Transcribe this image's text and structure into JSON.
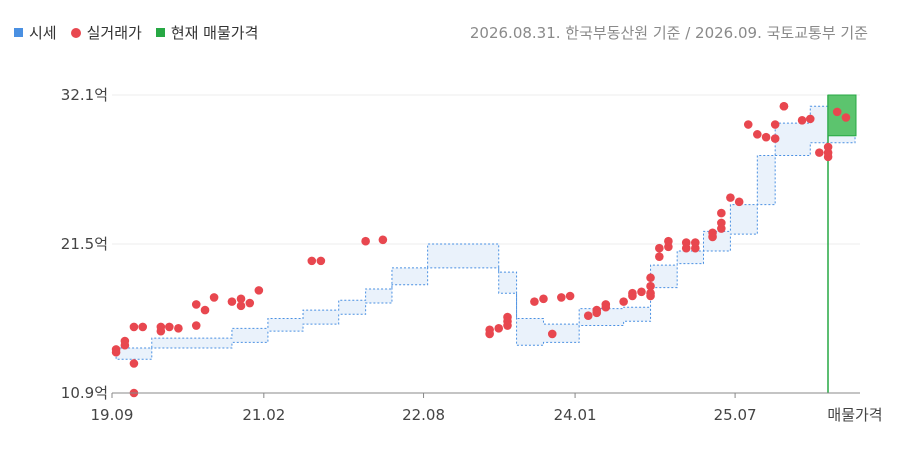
{
  "legend": {
    "market_label": "시세",
    "actual_label": "실거래가",
    "listing_label": "현재 매물가격"
  },
  "source_note": "2026.08.31. 한국부동산원 기준 / 2026.09. 국토교통부 기준",
  "colors": {
    "market": "#4a90e2",
    "market_fill": "#eaf2fb",
    "actual": "#e8474f",
    "listing": "#27a844",
    "listing_fill": "#5cc46e",
    "grid": "#ececec"
  },
  "chart_data": {
    "type": "scatter",
    "y_unit": "억",
    "ylim": [
      10.9,
      32.1
    ],
    "y_ticks": [
      10.9,
      21.5,
      32.1
    ],
    "y_tick_labels": [
      "10.9억",
      "21.5억",
      "32.1억"
    ],
    "x_start": "2019-09-01",
    "x_end": "2026-09-01",
    "x_tick_dates": [
      "2019-09-01",
      "2021-02-01",
      "2022-08-01",
      "2024-01-01",
      "2025-07-01"
    ],
    "x_tick_labels": [
      "19.09",
      "21.02",
      "22.08",
      "24.01",
      "25.07"
    ],
    "listing_label": "매물가격",
    "listing_range": [
      29.2,
      32.1
    ],
    "market_band": [
      {
        "date": "2019-09",
        "low": 13.3,
        "high": 14.1
      },
      {
        "date": "2020-01",
        "low": 14.1,
        "high": 14.8
      },
      {
        "date": "2020-10",
        "low": 14.5,
        "high": 15.5
      },
      {
        "date": "2021-02",
        "low": 15.3,
        "high": 16.2
      },
      {
        "date": "2021-06",
        "low": 15.8,
        "high": 16.8
      },
      {
        "date": "2021-10",
        "low": 16.5,
        "high": 17.5
      },
      {
        "date": "2022-01",
        "low": 17.3,
        "high": 18.3
      },
      {
        "date": "2022-04",
        "low": 18.6,
        "high": 19.8
      },
      {
        "date": "2022-08",
        "low": 19.8,
        "high": 21.5
      },
      {
        "date": "2023-01",
        "low": 19.8,
        "high": 21.5
      },
      {
        "date": "2023-04",
        "low": 18.0,
        "high": 19.5
      },
      {
        "date": "2023-06",
        "low": 14.3,
        "high": 16.2
      },
      {
        "date": "2023-09",
        "low": 14.5,
        "high": 15.8
      },
      {
        "date": "2024-01",
        "low": 15.7,
        "high": 16.9
      },
      {
        "date": "2024-06",
        "low": 16.0,
        "high": 17.0
      },
      {
        "date": "2024-09",
        "low": 18.4,
        "high": 20.0
      },
      {
        "date": "2024-12",
        "low": 20.1,
        "high": 21.0
      },
      {
        "date": "2025-03",
        "low": 21.0,
        "high": 22.4
      },
      {
        "date": "2025-06",
        "low": 22.2,
        "high": 24.3
      },
      {
        "date": "2025-09",
        "low": 24.3,
        "high": 27.8
      },
      {
        "date": "2025-11",
        "low": 27.8,
        "high": 30.1
      },
      {
        "date": "2026-03",
        "low": 28.7,
        "high": 31.3
      },
      {
        "date": "2026-08",
        "low": 28.7,
        "high": 31.3
      }
    ],
    "transactions": [
      {
        "date": "2019-09",
        "value": 14.0
      },
      {
        "date": "2019-09",
        "value": 13.8
      },
      {
        "date": "2019-10",
        "value": 14.3
      },
      {
        "date": "2019-10",
        "value": 14.6
      },
      {
        "date": "2019-11",
        "value": 15.6
      },
      {
        "date": "2019-11",
        "value": 13.0
      },
      {
        "date": "2019-11",
        "value": 10.9
      },
      {
        "date": "2019-12",
        "value": 15.6
      },
      {
        "date": "2020-02",
        "value": 15.3
      },
      {
        "date": "2020-02",
        "value": 15.6
      },
      {
        "date": "2020-03",
        "value": 15.6
      },
      {
        "date": "2020-04",
        "value": 15.5
      },
      {
        "date": "2020-06",
        "value": 15.7
      },
      {
        "date": "2020-06",
        "value": 17.2
      },
      {
        "date": "2020-07",
        "value": 16.8
      },
      {
        "date": "2020-08",
        "value": 17.7
      },
      {
        "date": "2020-10",
        "value": 17.4
      },
      {
        "date": "2020-11",
        "value": 17.6
      },
      {
        "date": "2020-11",
        "value": 17.1
      },
      {
        "date": "2020-12",
        "value": 17.3
      },
      {
        "date": "2021-01",
        "value": 18.2
      },
      {
        "date": "2021-07",
        "value": 20.3
      },
      {
        "date": "2021-08",
        "value": 20.3
      },
      {
        "date": "2022-01",
        "value": 21.7
      },
      {
        "date": "2022-03",
        "value": 21.8
      },
      {
        "date": "2023-03",
        "value": 15.1
      },
      {
        "date": "2023-03",
        "value": 15.4
      },
      {
        "date": "2023-04",
        "value": 15.5
      },
      {
        "date": "2023-05",
        "value": 16.3
      },
      {
        "date": "2023-05",
        "value": 16.0
      },
      {
        "date": "2023-05",
        "value": 15.7
      },
      {
        "date": "2023-08",
        "value": 17.4
      },
      {
        "date": "2023-09",
        "value": 17.6
      },
      {
        "date": "2023-10",
        "value": 15.1
      },
      {
        "date": "2023-11",
        "value": 17.7
      },
      {
        "date": "2023-12",
        "value": 17.8
      },
      {
        "date": "2024-02",
        "value": 16.4
      },
      {
        "date": "2024-03",
        "value": 16.6
      },
      {
        "date": "2024-03",
        "value": 16.8
      },
      {
        "date": "2024-04",
        "value": 17.2
      },
      {
        "date": "2024-04",
        "value": 17.0
      },
      {
        "date": "2024-06",
        "value": 17.4
      },
      {
        "date": "2024-07",
        "value": 17.8
      },
      {
        "date": "2024-07",
        "value": 18.0
      },
      {
        "date": "2024-08",
        "value": 18.1
      },
      {
        "date": "2024-09",
        "value": 17.8
      },
      {
        "date": "2024-09",
        "value": 18.0
      },
      {
        "date": "2024-09",
        "value": 18.5
      },
      {
        "date": "2024-09",
        "value": 19.1
      },
      {
        "date": "2024-10",
        "value": 20.6
      },
      {
        "date": "2024-10",
        "value": 21.2
      },
      {
        "date": "2024-11",
        "value": 21.3
      },
      {
        "date": "2024-11",
        "value": 21.7
      },
      {
        "date": "2025-01",
        "value": 21.2
      },
      {
        "date": "2025-01",
        "value": 21.6
      },
      {
        "date": "2025-02",
        "value": 21.2
      },
      {
        "date": "2025-02",
        "value": 21.6
      },
      {
        "date": "2025-04",
        "value": 22.0
      },
      {
        "date": "2025-04",
        "value": 22.3
      },
      {
        "date": "2025-05",
        "value": 22.6
      },
      {
        "date": "2025-05",
        "value": 23.0
      },
      {
        "date": "2025-05",
        "value": 23.7
      },
      {
        "date": "2025-06",
        "value": 24.8
      },
      {
        "date": "2025-07",
        "value": 24.5
      },
      {
        "date": "2025-08",
        "value": 30.0
      },
      {
        "date": "2025-09",
        "value": 29.3
      },
      {
        "date": "2025-10",
        "value": 29.1
      },
      {
        "date": "2025-11",
        "value": 30.0
      },
      {
        "date": "2025-11",
        "value": 29.0
      },
      {
        "date": "2025-12",
        "value": 31.3
      },
      {
        "date": "2025-12",
        "value": 31.3
      },
      {
        "date": "2026-02",
        "value": 30.3
      },
      {
        "date": "2026-03",
        "value": 30.4
      },
      {
        "date": "2026-04",
        "value": 28.0
      },
      {
        "date": "2026-05",
        "value": 27.7
      },
      {
        "date": "2026-05",
        "value": 28.0
      },
      {
        "date": "2026-05",
        "value": 28.4
      },
      {
        "date": "2026-06",
        "value": 30.9
      },
      {
        "date": "2026-07",
        "value": 30.5
      }
    ]
  }
}
